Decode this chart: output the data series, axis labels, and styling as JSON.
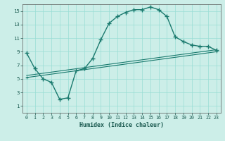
{
  "xlabel": "Humidex (Indice chaleur)",
  "bg_color": "#cceee8",
  "grid_color": "#99ddd5",
  "line_color": "#1a7a6e",
  "xlim": [
    -0.5,
    23.5
  ],
  "ylim": [
    0,
    16
  ],
  "xticks": [
    0,
    1,
    2,
    3,
    4,
    5,
    6,
    7,
    8,
    9,
    10,
    11,
    12,
    13,
    14,
    15,
    16,
    17,
    18,
    19,
    20,
    21,
    22,
    23
  ],
  "yticks": [
    1,
    3,
    5,
    7,
    9,
    11,
    13,
    15
  ],
  "curve1_x": [
    0,
    1,
    2,
    3,
    4,
    5,
    6,
    7,
    8,
    9,
    10,
    11,
    12,
    13,
    14,
    15,
    16,
    17,
    18,
    19,
    20,
    21,
    22,
    23
  ],
  "curve1_y": [
    8.8,
    6.5,
    5.0,
    4.5,
    2.0,
    2.2,
    6.2,
    6.5,
    8.0,
    10.8,
    13.2,
    14.2,
    14.8,
    15.2,
    15.2,
    15.6,
    15.2,
    14.2,
    11.2,
    10.5,
    10.0,
    9.8,
    9.8,
    9.2
  ],
  "curve2_x": [
    0,
    23
  ],
  "curve2_y": [
    5.2,
    9.0
  ],
  "curve3_x": [
    0,
    23
  ],
  "curve3_y": [
    5.5,
    9.3
  ]
}
